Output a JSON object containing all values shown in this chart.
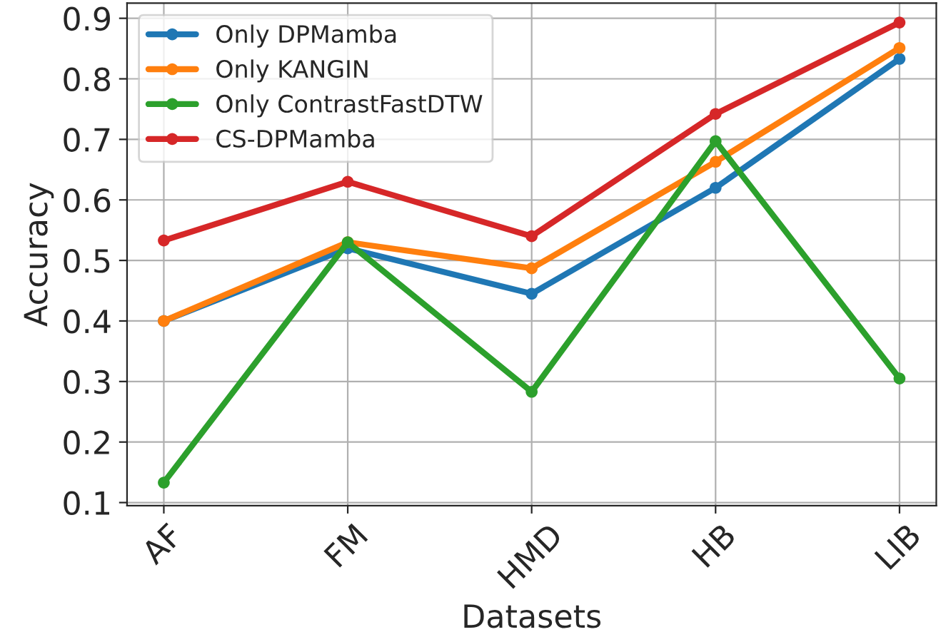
{
  "chart_data": {
    "type": "line",
    "xlabel": "Datasets",
    "ylabel": "Accuracy",
    "categories": [
      "AF",
      "FM",
      "HMD",
      "HB",
      "LIB"
    ],
    "series": [
      {
        "name": "Only DPMamba",
        "color": "#1f77b4",
        "values": [
          0.4,
          0.52,
          0.445,
          0.62,
          0.833
        ]
      },
      {
        "name": "Only KANGIN",
        "color": "#ff7f0e",
        "values": [
          0.4,
          0.53,
          0.487,
          0.663,
          0.851
        ]
      },
      {
        "name": "Only ContrastFastDTW",
        "color": "#2ca02c",
        "values": [
          0.133,
          0.53,
          0.283,
          0.697,
          0.305
        ]
      },
      {
        "name": "CS-DPMamba",
        "color": "#d62728",
        "values": [
          0.533,
          0.63,
          0.54,
          0.742,
          0.893
        ]
      }
    ],
    "ylim": [
      0.095,
      0.925
    ],
    "yticks": [
      0.1,
      0.2,
      0.3,
      0.4,
      0.5,
      0.6,
      0.7,
      0.8,
      0.9
    ],
    "grid": true,
    "legend": "top left",
    "marker": "circle",
    "line_style": "solid"
  }
}
